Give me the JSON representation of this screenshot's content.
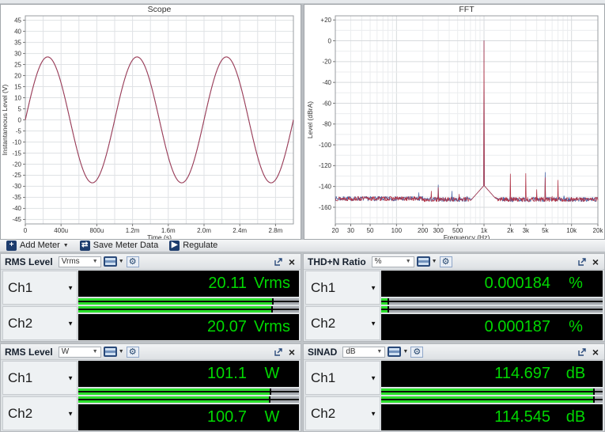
{
  "toolbar": {
    "add_meter": "Add Meter",
    "save_meter_data": "Save Meter Data",
    "regulate": "Regulate"
  },
  "chart_data": [
    {
      "type": "line",
      "title": "Scope",
      "xlabel": "Time (s)",
      "ylabel": "Instantaneous Level (V)",
      "xlim": [
        0,
        0.003
      ],
      "ylim": [
        -47,
        47
      ],
      "x_minor_step": 0.0002,
      "xticks": [
        [
          0,
          "0"
        ],
        [
          0.0004,
          "400u"
        ],
        [
          0.0008,
          "800u"
        ],
        [
          0.0012,
          "1.2m"
        ],
        [
          0.0016,
          "1.6m"
        ],
        [
          0.002,
          "2.0m"
        ],
        [
          0.0024,
          "2.4m"
        ],
        [
          0.0028,
          "2.8m"
        ]
      ],
      "yticks": [
        [
          45,
          "45"
        ],
        [
          40,
          "40"
        ],
        [
          35,
          "35"
        ],
        [
          30,
          "30"
        ],
        [
          25,
          "25"
        ],
        [
          20,
          "20"
        ],
        [
          15,
          "15"
        ],
        [
          10,
          "10"
        ],
        [
          5,
          "5"
        ],
        [
          0,
          "0"
        ],
        [
          -5,
          "-5"
        ],
        [
          -10,
          "-10"
        ],
        [
          -15,
          "-15"
        ],
        [
          -20,
          "-20"
        ],
        [
          -25,
          "-25"
        ],
        [
          -30,
          "-30"
        ],
        [
          -35,
          "-35"
        ],
        [
          -40,
          "-40"
        ],
        [
          -45,
          "-45"
        ]
      ],
      "signal": {
        "kind": "sine",
        "amplitude_v": 28.44,
        "frequency_hz": 1000,
        "phase_deg": 0
      },
      "series": [
        {
          "name": "Ch1",
          "color": "#4664a6"
        },
        {
          "name": "Ch2",
          "color": "#a83d52"
        }
      ]
    },
    {
      "type": "line",
      "title": "FFT",
      "xlabel": "Frequency (Hz)",
      "ylabel": "Level (dBrA)",
      "xscale": "log",
      "xlim": [
        20,
        20000
      ],
      "ylim": [
        -176,
        24
      ],
      "y_minor_step": 10,
      "xticks": [
        [
          20,
          "20"
        ],
        [
          30,
          "30"
        ],
        [
          50,
          "50"
        ],
        [
          100,
          "100"
        ],
        [
          200,
          "200"
        ],
        [
          300,
          "300"
        ],
        [
          500,
          "500"
        ],
        [
          1000,
          "1k"
        ],
        [
          2000,
          "2k"
        ],
        [
          3000,
          "3k"
        ],
        [
          5000,
          "5k"
        ],
        [
          10000,
          "10k"
        ],
        [
          20000,
          "20k"
        ]
      ],
      "yticks": [
        [
          20,
          "+20"
        ],
        [
          0,
          "0"
        ],
        [
          -20,
          "-20"
        ],
        [
          -40,
          "-40"
        ],
        [
          -60,
          "-60"
        ],
        [
          -80,
          "-80"
        ],
        [
          -100,
          "-100"
        ],
        [
          -120,
          "-120"
        ],
        [
          -140,
          "-140"
        ],
        [
          -160,
          "-160"
        ]
      ],
      "noise_floor_db": -152.5,
      "fundamental": {
        "frequency_hz": 1000,
        "level_db": 0
      },
      "series": [
        {
          "name": "Ch1",
          "color": "#4664a6",
          "seed": 7,
          "spurs_hz_db": [
            [
              180,
              -146
            ],
            [
              300,
              -138.5
            ],
            [
              430,
              -144.5
            ],
            [
              640,
              -149.5
            ],
            [
              5000,
              -126.5
            ],
            [
              8200,
              -149
            ]
          ]
        },
        {
          "name": "Ch2",
          "color": "#b03346",
          "seed": 13,
          "spurs_hz_db": [
            [
              250,
              -144.5
            ],
            [
              300,
              -141
            ],
            [
              520,
              -147.5
            ],
            [
              2000,
              -128
            ],
            [
              3000,
              -127.5
            ],
            [
              4000,
              -143
            ],
            [
              5000,
              -131.5
            ],
            [
              6000,
              -149.5
            ],
            [
              7000,
              -134
            ]
          ]
        }
      ]
    }
  ],
  "meters": [
    {
      "title": "RMS Level",
      "unit": "Vrms",
      "channels": [
        {
          "name": "Ch1",
          "value": "20.11",
          "unit": "Vrms",
          "bar_pct": 88.5
        },
        {
          "name": "Ch2",
          "value": "20.07",
          "unit": "Vrms",
          "bar_pct": 88.2
        }
      ]
    },
    {
      "title": "THD+N Ratio",
      "unit": "%",
      "channels": [
        {
          "name": "Ch1",
          "value": "0.000184",
          "unit": "%",
          "bar_pct": 3.5
        },
        {
          "name": "Ch2",
          "value": "0.000187",
          "unit": "%",
          "bar_pct": 3.5
        }
      ]
    },
    {
      "title": "RMS Level",
      "unit": "W",
      "channels": [
        {
          "name": "Ch1",
          "value": "101.1",
          "unit": "W",
          "bar_pct": 87.3
        },
        {
          "name": "Ch2",
          "value": "100.7",
          "unit": "W",
          "bar_pct": 87.0
        }
      ]
    },
    {
      "title": "SINAD",
      "unit": "dB",
      "channels": [
        {
          "name": "Ch1",
          "value": "114.697",
          "unit": "dB",
          "bar_pct": 96.6
        },
        {
          "name": "Ch2",
          "value": "114.545",
          "unit": "dB",
          "bar_pct": 96.3
        }
      ]
    }
  ]
}
